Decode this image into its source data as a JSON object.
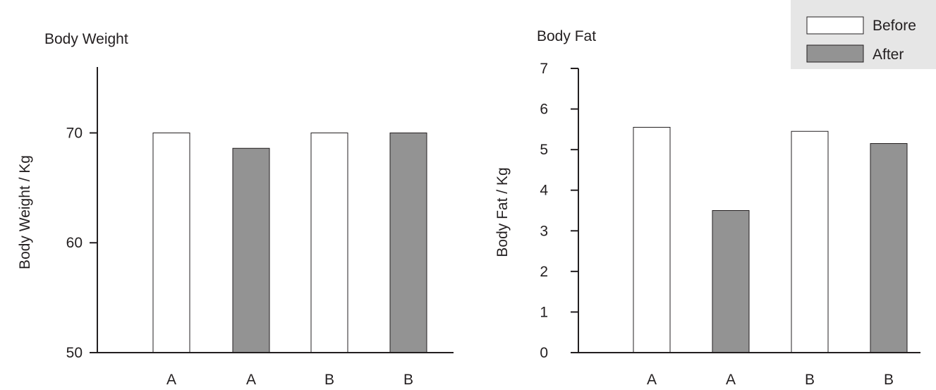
{
  "colors": {
    "before": "#ffffff",
    "after": "#939393",
    "axis": "#231f20",
    "legend_bg": "#e6e6e6"
  },
  "legend": {
    "placement": "top-right",
    "entries": [
      "Before",
      "After"
    ]
  },
  "chart_data": [
    {
      "type": "bar",
      "title": "Body Weight",
      "xlabel": "",
      "ylabel": "Body Weight / Kg",
      "ylim": [
        50,
        76
      ],
      "yticks": [
        50,
        60,
        70
      ],
      "categories": [
        "A",
        "A",
        "B",
        "B"
      ],
      "series": [
        {
          "name": "Before",
          "values": [
            70.0,
            null,
            70.0,
            null
          ]
        },
        {
          "name": "After",
          "values": [
            null,
            68.6,
            null,
            70.0
          ]
        }
      ],
      "grid": false
    },
    {
      "type": "bar",
      "title": "Body Fat",
      "xlabel": "",
      "ylabel": "Body Fat / Kg",
      "ylim": [
        0,
        7
      ],
      "yticks": [
        0,
        1,
        2,
        3,
        4,
        5,
        6,
        7
      ],
      "categories": [
        "A",
        "A",
        "B",
        "B"
      ],
      "series": [
        {
          "name": "Before",
          "values": [
            5.55,
            null,
            5.45,
            null
          ]
        },
        {
          "name": "After",
          "values": [
            null,
            3.5,
            null,
            5.15
          ]
        }
      ],
      "grid": false
    }
  ]
}
